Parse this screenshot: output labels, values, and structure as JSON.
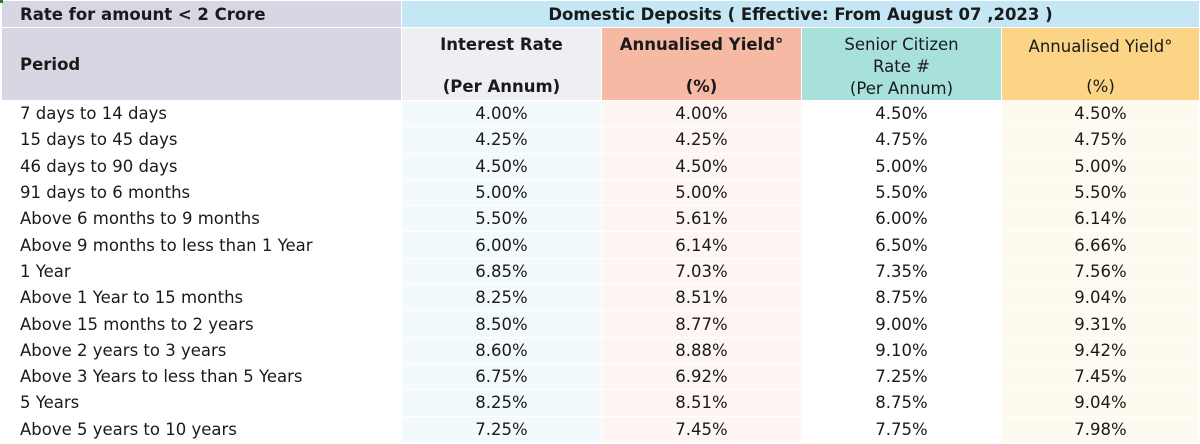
{
  "header": {
    "rate_label": "Rate for amount < 2 Crore",
    "domestic_label": "Domestic Deposits ( Effective: From August 07 ,2023 )",
    "period_label": "Period",
    "interest_rate": {
      "line1": "Interest Rate",
      "line2": "(Per Annum)"
    },
    "annualised_yield_1": {
      "line1": "Annualised Yield°",
      "line2": "(%)"
    },
    "senior_citizen": {
      "line1": "Senior Citizen",
      "line2": "Rate #",
      "line3": "(Per Annum)"
    },
    "annualised_yield_2": {
      "line1": "Annualised Yield°",
      "line2": "(%)"
    }
  },
  "rows": [
    {
      "period": "7 days to 14 days",
      "interest_rate": "4.00%",
      "annualised_yield": "4.00%",
      "senior_rate": "4.50%",
      "senior_yield": "4.50%"
    },
    {
      "period": "15 days to 45 days",
      "interest_rate": "4.25%",
      "annualised_yield": "4.25%",
      "senior_rate": "4.75%",
      "senior_yield": "4.75%"
    },
    {
      "period": "46 days to 90 days",
      "interest_rate": "4.50%",
      "annualised_yield": "4.50%",
      "senior_rate": "5.00%",
      "senior_yield": "5.00%"
    },
    {
      "period": "91 days to 6 months",
      "interest_rate": "5.00%",
      "annualised_yield": "5.00%",
      "senior_rate": "5.50%",
      "senior_yield": "5.50%"
    },
    {
      "period": "Above 6 months to 9 months",
      "interest_rate": "5.50%",
      "annualised_yield": "5.61%",
      "senior_rate": "6.00%",
      "senior_yield": "6.14%"
    },
    {
      "period": "Above 9 months to less than 1 Year",
      "interest_rate": "6.00%",
      "annualised_yield": "6.14%",
      "senior_rate": "6.50%",
      "senior_yield": "6.66%"
    },
    {
      "period": "1 Year",
      "interest_rate": "6.85%",
      "annualised_yield": "7.03%",
      "senior_rate": "7.35%",
      "senior_yield": "7.56%"
    },
    {
      "period": "Above 1 Year to 15 months",
      "interest_rate": "8.25%",
      "annualised_yield": "8.51%",
      "senior_rate": "8.75%",
      "senior_yield": "9.04%"
    },
    {
      "period": "Above 15 months to 2 years",
      "interest_rate": "8.50%",
      "annualised_yield": "8.77%",
      "senior_rate": "9.00%",
      "senior_yield": "9.31%"
    },
    {
      "period": "Above 2 years to 3 years",
      "interest_rate": "8.60%",
      "annualised_yield": "8.88%",
      "senior_rate": "9.10%",
      "senior_yield": "9.42%"
    },
    {
      "period": "Above 3 Years to less than 5 Years",
      "interest_rate": "6.75%",
      "annualised_yield": "6.92%",
      "senior_rate": "7.25%",
      "senior_yield": "7.45%"
    },
    {
      "period": "5 Years",
      "interest_rate": "8.25%",
      "annualised_yield": "8.51%",
      "senior_rate": "8.75%",
      "senior_yield": "9.04%"
    },
    {
      "period": "Above 5 years to 10 years",
      "interest_rate": "7.25%",
      "annualised_yield": "7.45%",
      "senior_rate": "7.75%",
      "senior_yield": "7.98%"
    }
  ]
}
